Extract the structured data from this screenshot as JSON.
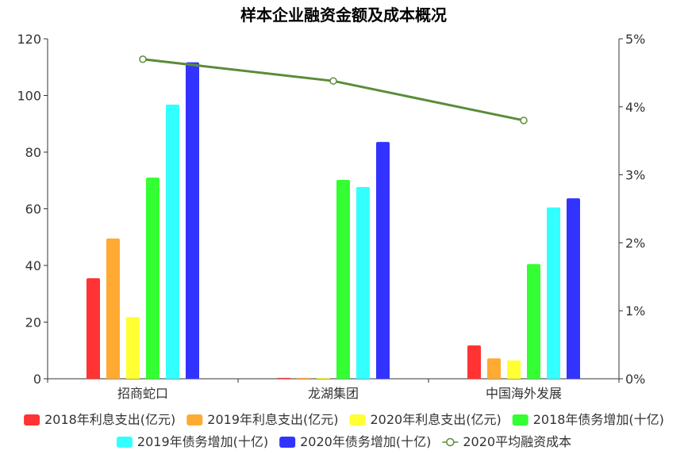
{
  "chart_data": {
    "type": "bar",
    "title": "样本企业融资金额及成本概况",
    "categories": [
      "招商蛇口",
      "龙湖集团",
      "中国海外发展"
    ],
    "ylim": [
      0,
      120
    ],
    "yticks": [
      "0",
      "20",
      "40",
      "60",
      "80",
      "100",
      "120"
    ],
    "y2lim": [
      0,
      0.05
    ],
    "y2ticks": [
      "0%",
      "1%",
      "2%",
      "3%",
      "4%",
      "5%"
    ],
    "grid": false,
    "legend_position": "bottom",
    "series": [
      {
        "name": "2018年利息支出(亿元)",
        "type": "bar",
        "color": "#ff3333",
        "values": [
          35.5,
          0.3,
          11.8
        ]
      },
      {
        "name": "2019年利息支出(亿元)",
        "type": "bar",
        "color": "#ffaa33",
        "values": [
          49.5,
          0.3,
          7.2
        ]
      },
      {
        "name": "2020年利息支出(亿元)",
        "type": "bar",
        "color": "#ffff33",
        "values": [
          21.8,
          0.4,
          6.5
        ]
      },
      {
        "name": "2018年债务增加(十亿)",
        "type": "bar",
        "color": "#33ff33",
        "values": [
          71,
          70.2,
          40.5
        ]
      },
      {
        "name": "2019年债务增加(十亿)",
        "type": "bar",
        "color": "#33ffff",
        "values": [
          96.8,
          67.7,
          60.5
        ]
      },
      {
        "name": "2020年债务增加(十亿)",
        "type": "bar",
        "color": "#3333ff",
        "values": [
          111.7,
          83.6,
          63.7
        ]
      },
      {
        "name": "2020平均融资成本",
        "type": "line",
        "axis": "right",
        "color": "#5b8c3a",
        "values": [
          0.047,
          0.0438,
          0.038
        ]
      }
    ]
  }
}
